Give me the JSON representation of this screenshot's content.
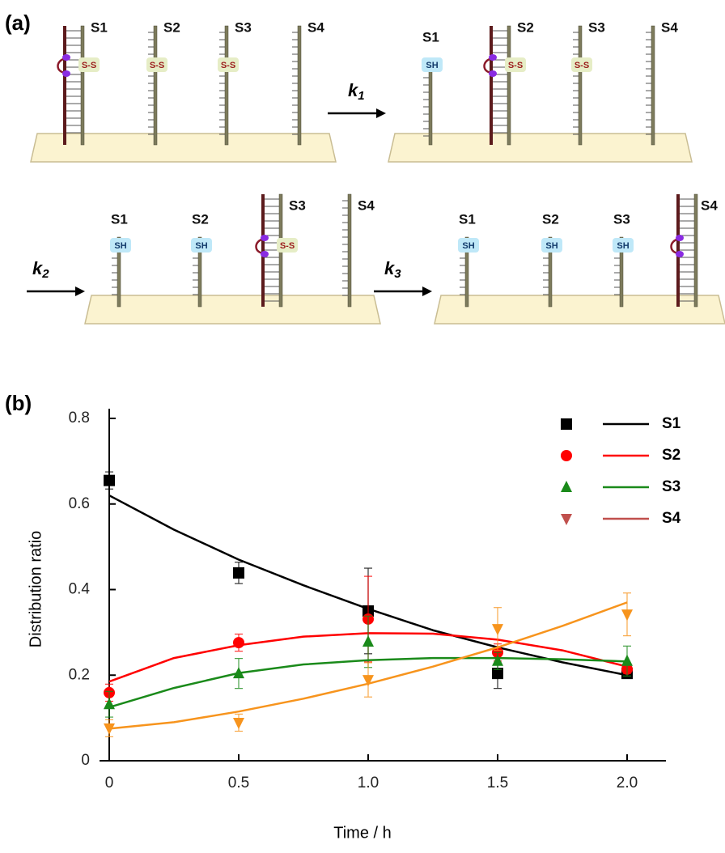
{
  "panel_a": {
    "label": "(a)",
    "states": [
      {
        "strands": [
          {
            "name": "S1",
            "tag": "S-S"
          },
          {
            "name": "S2",
            "tag": "S-S"
          },
          {
            "name": "S3",
            "tag": "S-S"
          },
          {
            "name": "S4",
            "tag": null
          }
        ]
      },
      {
        "strands": [
          {
            "name": "S1",
            "tag": "SH"
          },
          {
            "name": "S2",
            "tag": "S-S"
          },
          {
            "name": "S3",
            "tag": "S-S"
          },
          {
            "name": "S4",
            "tag": null
          }
        ]
      },
      {
        "strands": [
          {
            "name": "S1",
            "tag": "SH"
          },
          {
            "name": "S2",
            "tag": "SH"
          },
          {
            "name": "S3",
            "tag": "S-S"
          },
          {
            "name": "S4",
            "tag": null
          }
        ]
      },
      {
        "strands": [
          {
            "name": "S1",
            "tag": "SH"
          },
          {
            "name": "S2",
            "tag": "SH"
          },
          {
            "name": "S3",
            "tag": "SH"
          },
          {
            "name": "S4",
            "tag": null
          }
        ]
      }
    ],
    "rates": [
      {
        "symbol": "k",
        "index": "1"
      },
      {
        "symbol": "k",
        "index": "2"
      },
      {
        "symbol": "k",
        "index": "3"
      }
    ]
  },
  "chart_data": {
    "type": "scatter",
    "panel_label": "(b)",
    "x_label": "Time / h",
    "y_label": "Distribution ratio",
    "x": [
      0,
      0.5,
      1,
      1.5,
      2
    ],
    "xlim": [
      0,
      2.15
    ],
    "xticks": [
      0,
      0.5,
      {
        "value": 1,
        "label": "1.0"
      },
      1.5,
      {
        "value": 2,
        "label": "2.0"
      }
    ],
    "ylim": [
      0,
      0.8
    ],
    "yticks": [
      0,
      0.2,
      0.4,
      0.6,
      0.8
    ],
    "fit_x": [
      0,
      0.25,
      0.5,
      0.75,
      1,
      1.25,
      1.5,
      1.75,
      2
    ],
    "legend_position": "upper right",
    "series": [
      {
        "name": "S1",
        "color": "#000000",
        "marker": "square",
        "values": [
          0.655,
          0.439,
          0.35,
          0.204,
          0.204
        ],
        "errors": [
          0.02,
          0.025,
          0.1,
          0.035,
          0.005
        ],
        "fit": [
          0.62,
          0.54,
          0.47,
          0.41,
          0.355,
          0.305,
          0.265,
          0.23,
          0.2
        ]
      },
      {
        "name": "S2",
        "color": "#ff0000",
        "marker": "circle",
        "values": [
          0.159,
          0.276,
          0.331,
          0.253,
          0.214
        ],
        "errors": [
          0.02,
          0.02,
          0.1,
          0.02,
          0.01
        ],
        "fit": [
          0.185,
          0.24,
          0.27,
          0.29,
          0.298,
          0.297,
          0.283,
          0.258,
          0.22
        ]
      },
      {
        "name": "S3",
        "color": "#1a8a1a",
        "marker": "triangle-up",
        "values": [
          0.132,
          0.204,
          0.278,
          0.233,
          0.233
        ],
        "errors": [
          0.03,
          0.035,
          0.06,
          0.02,
          0.035
        ],
        "fit": [
          0.125,
          0.17,
          0.205,
          0.225,
          0.235,
          0.24,
          0.24,
          0.237,
          0.232
        ]
      },
      {
        "name": "S4",
        "color": "#f7941d",
        "legend_color": "#c0504d",
        "marker": "triangle-down",
        "values": [
          0.076,
          0.089,
          0.189,
          0.308,
          0.342
        ],
        "errors": [
          0.02,
          0.02,
          0.04,
          0.05,
          0.05
        ],
        "fit": [
          0.075,
          0.09,
          0.115,
          0.145,
          0.18,
          0.22,
          0.265,
          0.315,
          0.37
        ]
      }
    ]
  }
}
